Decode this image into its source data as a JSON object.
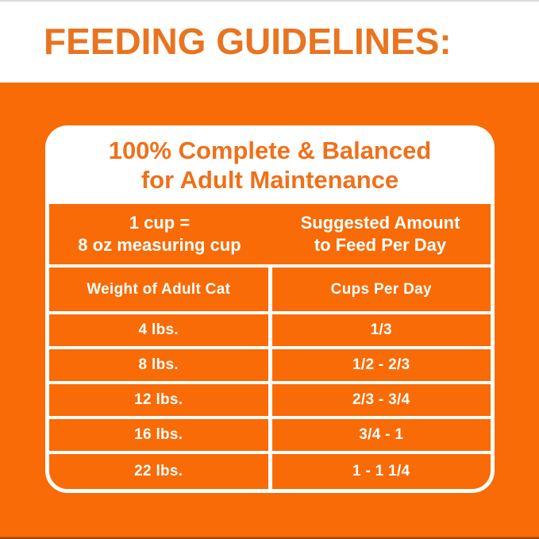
{
  "colors": {
    "background_orange": "#F86B06",
    "title_orange": "#E97420",
    "card_header_orange": "#F0701A",
    "text_white": "#FFFFFF",
    "top_hairline_gray": "#DBDBDB"
  },
  "banner": {
    "title": "FEEDING GUIDELINES:"
  },
  "card": {
    "header": {
      "line1": "100% Complete & Balanced",
      "line2": "for Adult Maintenance"
    },
    "measure_note": {
      "line1": "1 cup =",
      "line2": "8 oz measuring cup"
    },
    "suggested": {
      "line1": "Suggested Amount",
      "line2": "to Feed Per Day"
    },
    "columns": [
      "Weight of Adult Cat",
      "Cups Per Day"
    ],
    "rows": [
      {
        "weight": "4 lbs.",
        "cups": "1/3"
      },
      {
        "weight": "8 lbs.",
        "cups": "1/2 - 2/3"
      },
      {
        "weight": "12 lbs.",
        "cups": "2/3 - 3/4"
      },
      {
        "weight": "16 lbs.",
        "cups": "3/4 - 1"
      },
      {
        "weight": "22 lbs.",
        "cups": "1 - 1 1/4"
      }
    ]
  }
}
